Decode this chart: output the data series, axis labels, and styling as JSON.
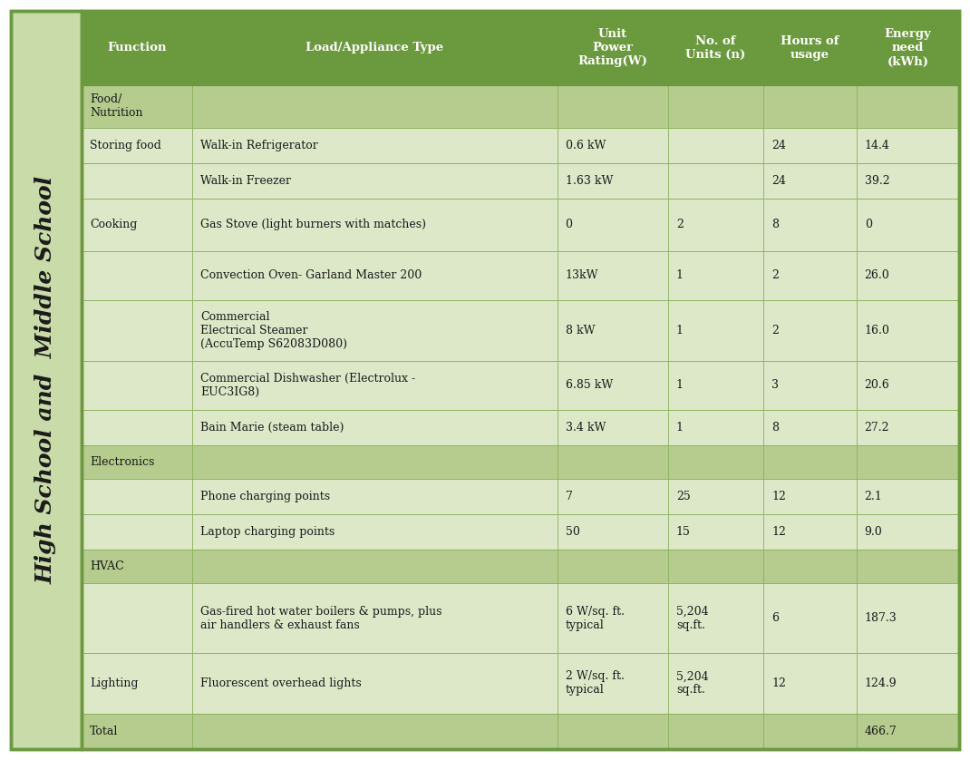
{
  "header_bg_color": "#6b9a3e",
  "row_bg_section": "#b5cc8e",
  "row_bg_light": "#dce8c8",
  "row_bg_white": "#eef4e4",
  "sidebar_bg": "#c8dba8",
  "sidebar_text": "High School and  Middle School",
  "header_row": [
    "Function",
    "Load/Appliance Type",
    "Unit\nPower\nRating(W)",
    "No. of\nUnits (n)",
    "Hours of\nusage",
    "Energy\nneed\n(kWh)"
  ],
  "rows": [
    {
      "function": "Food/\nNutrition",
      "appliance": "",
      "power": "",
      "units": "",
      "hours": "",
      "energy": "",
      "type": "section"
    },
    {
      "function": "Storing food",
      "appliance": "Walk-in Refrigerator",
      "power": "0.6 kW",
      "units": "",
      "hours": "24",
      "energy": "14.4",
      "type": "data"
    },
    {
      "function": "",
      "appliance": "Walk-in Freezer",
      "power": "1.63 kW",
      "units": "",
      "hours": "24",
      "energy": "39.2",
      "type": "data"
    },
    {
      "function": "Cooking",
      "appliance": "Gas Stove (light burners with matches)",
      "power": "0",
      "units": "2",
      "hours": "8",
      "energy": "0",
      "type": "data"
    },
    {
      "function": "",
      "appliance": "Convection Oven- Garland Master 200",
      "power": "13kW",
      "units": "1",
      "hours": "2",
      "energy": "26.0",
      "type": "data"
    },
    {
      "function": "",
      "appliance": "Commercial\nElectrical Steamer\n(AccuTemp S62083D080)",
      "power": "8 kW",
      "units": "1",
      "hours": "2",
      "energy": "16.0",
      "type": "data"
    },
    {
      "function": "",
      "appliance": "Commercial Dishwasher (Electrolux -\nEUC3IG8)",
      "power": "6.85 kW",
      "units": "1",
      "hours": "3",
      "energy": "20.6",
      "type": "data"
    },
    {
      "function": "",
      "appliance": "Bain Marie (steam table)",
      "power": "3.4 kW",
      "units": "1",
      "hours": "8",
      "energy": "27.2",
      "type": "data"
    },
    {
      "function": "Electronics",
      "appliance": "",
      "power": "",
      "units": "",
      "hours": "",
      "energy": "",
      "type": "section"
    },
    {
      "function": "",
      "appliance": "Phone charging points",
      "power": "7",
      "units": "25",
      "hours": "12",
      "energy": "2.1",
      "type": "data"
    },
    {
      "function": "",
      "appliance": "Laptop charging points",
      "power": "50",
      "units": "15",
      "hours": "12",
      "energy": "9.0",
      "type": "data"
    },
    {
      "function": "HVAC",
      "appliance": "",
      "power": "",
      "units": "",
      "hours": "",
      "energy": "",
      "type": "section"
    },
    {
      "function": "",
      "appliance": "Gas-fired hot water boilers & pumps, plus\nair handlers & exhaust fans",
      "power": "6 W/sq. ft.\ntypical",
      "units": "5,204\nsq.ft.",
      "hours": "6",
      "energy": "187.3",
      "type": "data"
    },
    {
      "function": "Lighting",
      "appliance": "Fluorescent overhead lights",
      "power": "2 W/sq. ft.\ntypical",
      "units": "5,204\nsq.ft.",
      "hours": "12",
      "energy": "124.9",
      "type": "data"
    },
    {
      "function": "Total",
      "appliance": "",
      "power": "",
      "units": "",
      "hours": "",
      "energy": "466.7",
      "type": "total"
    }
  ],
  "text_color_header": "#ffffff",
  "text_color_body": "#1a1a1a",
  "border_color": "#6b9a3e",
  "grid_color": "#8aaf5a"
}
